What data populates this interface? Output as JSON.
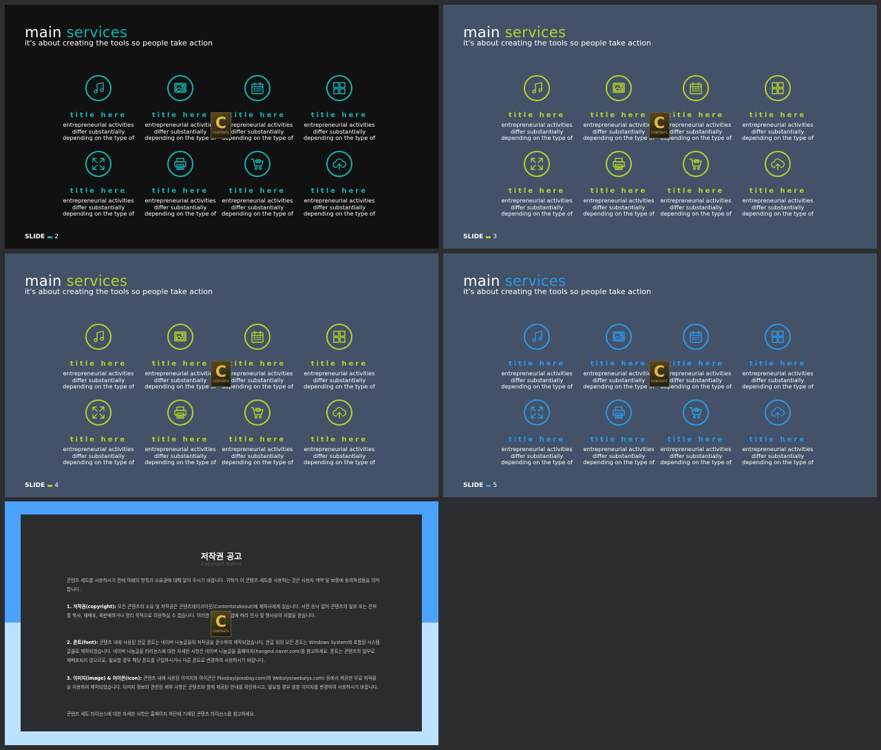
{
  "slides": [
    {
      "title_main": "main",
      "title_accent": "services",
      "subtitle": "it's about creating the tools so people take action",
      "background": "#111111",
      "accent_color": "#15b3b3",
      "slide_label": "SLIDE",
      "slide_number": "2"
    },
    {
      "title_main": "main",
      "title_accent": "services",
      "subtitle": "it's about creating the tools so people take action",
      "background": "#435268",
      "accent_color": "#b6d32c",
      "slide_label": "SLIDE",
      "slide_number": "3"
    },
    {
      "title_main": "main",
      "title_accent": "services",
      "subtitle": "it's about creating the tools so people take action",
      "background": "#435268",
      "accent_color": "#b6d32c",
      "slide_label": "SLIDE",
      "slide_number": "4"
    },
    {
      "title_main": "main",
      "title_accent": "services",
      "subtitle": "it's about creating the tools so people take action",
      "background": "#435268",
      "accent_color": "#2e97e8",
      "slide_label": "SLIDE",
      "slide_number": "5"
    }
  ],
  "service_items": [
    {
      "icon": "music-note-icon",
      "title": "title here",
      "desc": [
        "entrepreneurial activities",
        "differ substantially",
        "depending on the type of"
      ]
    },
    {
      "icon": "image-icon",
      "title": "title here",
      "desc": [
        "entrepreneurial activities",
        "differ substantially",
        "depending on the type of"
      ]
    },
    {
      "icon": "calendar-icon",
      "title": "title here",
      "desc": [
        "entrepreneurial activities",
        "differ substantially",
        "depending on the type of"
      ]
    },
    {
      "icon": "grid-icon",
      "title": "title here",
      "desc": [
        "entrepreneurial activities",
        "differ substantially",
        "depending on the type of"
      ]
    },
    {
      "icon": "expand-icon",
      "title": "title here",
      "desc": [
        "entrepreneurial activities",
        "differ substantially",
        "depending on the type of"
      ]
    },
    {
      "icon": "printer-icon",
      "title": "title here",
      "desc": [
        "entrepreneurial activities",
        "differ substantially",
        "depending on the type of"
      ]
    },
    {
      "icon": "cart-icon",
      "title": "title here",
      "desc": [
        "entrepreneurial activities",
        "differ substantially",
        "depending on the type of"
      ]
    },
    {
      "icon": "cloud-upload-icon",
      "title": "title here",
      "desc": [
        "entrepreneurial activities",
        "differ substantially",
        "depending on the type of"
      ]
    }
  ],
  "watermark": {
    "letter": "C",
    "text": "CONTENTS"
  },
  "notice": {
    "title": "저작권 공고",
    "subtitle": "Copyright Notice",
    "paragraphs": [
      {
        "lead": "",
        "text": "콘텐츠 세트를 사용하시기 전에 아래의 항목과 소유권에 대해 알아 주시기 바랍니다. 귀하가 이 콘텐츠 세트를 사용하는 것은 사용자 계약 및 보증에 동의하셨음을 의미합니다."
      },
      {
        "lead": "1. 저작권(copyright):",
        "text": " 모든 콘텐츠의 소유 및 저작권은 콘텐츠테이크아웃(Contentstakeout)에 제작사에게 있습니다. 사전 승낙 없이 콘텐츠의 일부 또는 전부를 복사, 재배포, 재판매하거나 영리 목적으로 이용하실 수 없습니다. 이러한 경우 관련 법에 따라 민사 및 형사상의 처벌을 받습니다."
      },
      {
        "lead": "2. 폰트(font):",
        "text": " 콘텐츠 내에 사용된 한글 폰트는 네이버 나눔글꼴의 저작권을 준수하여 제작되었습니다. 한글 외의 모든 폰트는 Windows System에 포함된 시스템 글꼴로 제작되었습니다. 네이버 나눔글꼴 라이선스에 대한 자세한 사항은 네이버 나눔글꼴 홈페이지(hangeul.naver.com)를 참고하세요. 폰트는 콘텐츠의 일부로 재배포되지 않으므로, 필요할 경우 해당 폰트를 구입하시거나 다른 폰트로 변경하여 사용하시기 바랍니다."
      },
      {
        "lead": "3. 이미지(image) & 아이콘(icon):",
        "text": " 콘텐츠 내에 사용된 이미지와 아이콘은 Pixabay(pixabay.com)와 Webalys(webalys.com) 등에서 제공한 무료 저작물을 이용하여 제작되었습니다. 이미지 정보와 관련된 세부 사항은 콘텐츠와 함께 제공된 안내를 확인하시고, 필요할 경우 원본 이미지를 변경하여 사용하시기 바랍니다."
      },
      {
        "lead": "",
        "text": "콘텐츠 세트 라이선스에 대한 자세한 사항은 홈페이지 하단에 기재된 콘텐츠 라이선스를 참고하세요."
      }
    ]
  }
}
